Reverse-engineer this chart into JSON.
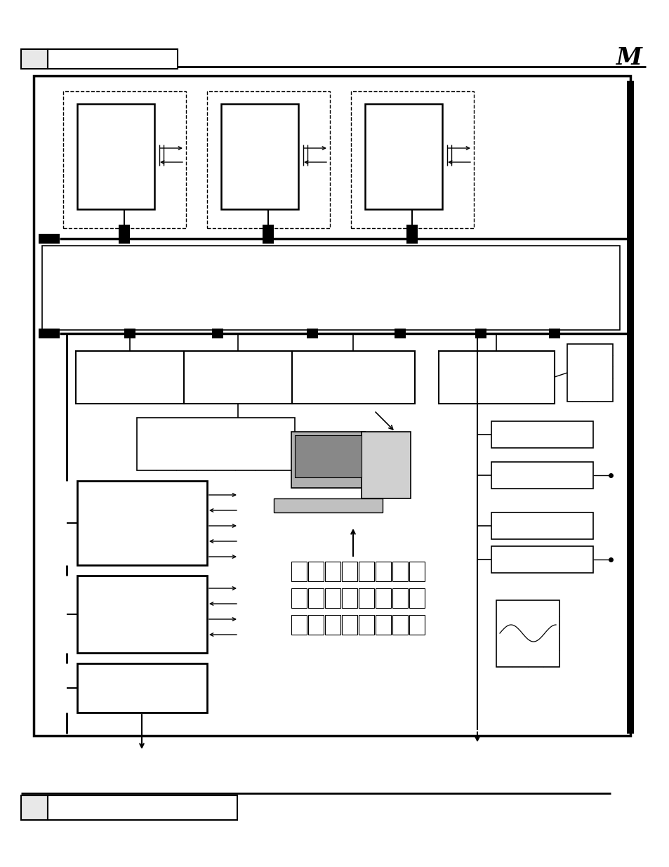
{
  "page_bg": "#ffffff",
  "fig_w": 9.54,
  "fig_h": 12.35,
  "dpi": 100
}
